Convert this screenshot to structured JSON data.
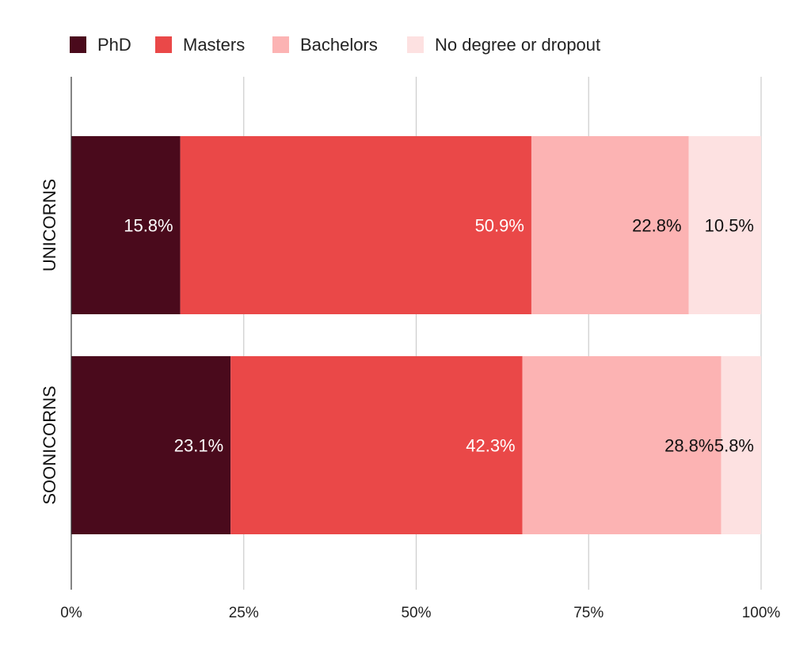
{
  "chart_data": {
    "type": "bar",
    "orientation": "horizontal",
    "stacked": true,
    "title": "",
    "xlabel": "",
    "ylabel": "",
    "xlim": [
      0,
      100
    ],
    "x_ticks": [
      "0%",
      "25%",
      "50%",
      "75%",
      "100%"
    ],
    "categories": [
      "UNICORNS",
      "SOONICORNS"
    ],
    "legend_position": "top-left",
    "grid": true,
    "series": [
      {
        "name": "PhD",
        "color": "#4a0a1c",
        "label_color": "#ffffff",
        "values": [
          15.8,
          23.1
        ],
        "labels": [
          "15.8%",
          "23.1%"
        ]
      },
      {
        "name": "Masters",
        "color": "#ea4848",
        "label_color": "#ffffff",
        "values": [
          50.9,
          42.3
        ],
        "labels": [
          "50.9%",
          "42.3%"
        ]
      },
      {
        "name": "Bachelors",
        "color": "#fcb3b3",
        "label_color": "#111111",
        "values": [
          22.8,
          28.8
        ],
        "labels": [
          "22.8%",
          "28.8%"
        ]
      },
      {
        "name": "No degree or dropout",
        "color": "#fde1e1",
        "label_color": "#111111",
        "values": [
          10.5,
          5.8
        ],
        "labels": [
          "10.5%",
          "5.8%"
        ]
      }
    ]
  }
}
